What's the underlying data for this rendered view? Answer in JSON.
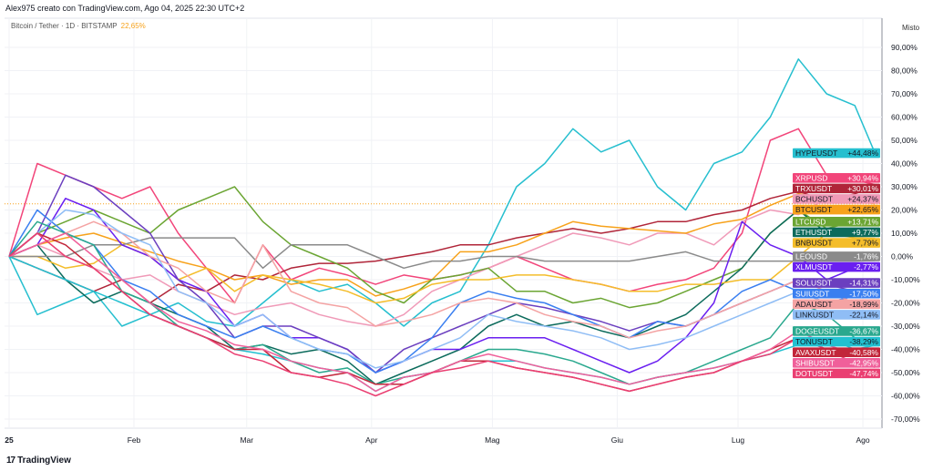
{
  "header": {
    "credit": "Alex975 creato con TradingView.com, Ago 04, 2025 22:30 UTC+2",
    "symbol": "Bitcoin / Tether · 1D · BITSTAMP",
    "change": "22,65%",
    "scale_mode": "Misto"
  },
  "footer": {
    "logo_mark": "17",
    "brand": "TradingView"
  },
  "chart_data": {
    "type": "line",
    "title": "",
    "ylabel": "",
    "xlabel": "",
    "ylim": [
      -75,
      97
    ],
    "grid": true,
    "y_ticks": [
      90,
      80,
      70,
      60,
      50,
      40,
      30,
      20,
      10,
      0,
      -10,
      -20,
      -30,
      -40,
      -50,
      -60,
      -70
    ],
    "y_tick_labels": [
      "90,00%",
      "80,00%",
      "70,00%",
      "60,00%",
      "50,00%",
      "40,00%",
      "30,00%",
      "20,00%",
      "10,00%",
      "0,00%",
      "-10,00%",
      "-20,00%",
      "-30,00%",
      "-40,00%",
      "-50,00%",
      "-60,00%",
      "-70,00%"
    ],
    "x_ticks": [
      {
        "date": "2025-01-01",
        "label": "25"
      },
      {
        "date": "2025-02-01",
        "label": "Feb"
      },
      {
        "date": "2025-03-01",
        "label": "Mar"
      },
      {
        "date": "2025-04-01",
        "label": "Apr"
      },
      {
        "date": "2025-05-01",
        "label": "Mag"
      },
      {
        "date": "2025-06-01",
        "label": "Giu"
      },
      {
        "date": "2025-07-01",
        "label": "Lug"
      },
      {
        "date": "2025-08-01",
        "label": "Ago"
      }
    ],
    "x": [
      "2025-01-01",
      "2025-01-08",
      "2025-01-15",
      "2025-01-22",
      "2025-01-29",
      "2025-02-05",
      "2025-02-12",
      "2025-02-19",
      "2025-02-26",
      "2025-03-05",
      "2025-03-12",
      "2025-03-19",
      "2025-03-26",
      "2025-04-02",
      "2025-04-09",
      "2025-04-16",
      "2025-04-23",
      "2025-04-30",
      "2025-05-07",
      "2025-05-14",
      "2025-05-21",
      "2025-05-28",
      "2025-06-04",
      "2025-06-11",
      "2025-06-18",
      "2025-06-25",
      "2025-07-02",
      "2025-07-09",
      "2025-07-16",
      "2025-07-23",
      "2025-07-30",
      "2025-08-04"
    ],
    "reference_line": {
      "value": 22.65,
      "color": "#f7a21b"
    },
    "series": [
      {
        "name": "HYPEUSDT",
        "last": "+44,48%",
        "color": "#26bfcf",
        "text": "#131722",
        "values": [
          0,
          -25,
          -20,
          -15,
          -30,
          -25,
          -20,
          -28,
          -30,
          -20,
          -10,
          -15,
          -12,
          -20,
          -30,
          -20,
          -15,
          5,
          30,
          40,
          55,
          45,
          50,
          30,
          20,
          40,
          45,
          60,
          85,
          70,
          65,
          44.48
        ]
      },
      {
        "name": "XRPUSD",
        "last": "+30,94%",
        "color": "#f2457a",
        "text": "#ffffff",
        "values": [
          0,
          40,
          35,
          30,
          25,
          30,
          10,
          -5,
          -20,
          5,
          -10,
          -5,
          -8,
          -12,
          -8,
          -10,
          -8,
          -5,
          0,
          -5,
          -10,
          -12,
          -15,
          -12,
          -10,
          -5,
          10,
          50,
          55,
          35,
          33,
          30.94
        ]
      },
      {
        "name": "TRXUSDT",
        "last": "+30,01%",
        "color": "#b02539",
        "text": "#ffffff",
        "values": [
          0,
          -5,
          -10,
          -15,
          -10,
          -20,
          -12,
          -15,
          -8,
          -10,
          -5,
          -3,
          -3,
          -2,
          0,
          2,
          5,
          5,
          8,
          10,
          12,
          10,
          12,
          15,
          15,
          18,
          20,
          25,
          28,
          24,
          27,
          30.01
        ]
      },
      {
        "name": "BCHUSDT",
        "last": "+24,37%",
        "color": "#f09ab8",
        "text": "#131722",
        "values": [
          0,
          5,
          0,
          -5,
          -10,
          -8,
          -15,
          -20,
          -25,
          -22,
          -20,
          -25,
          -28,
          -30,
          -25,
          -15,
          -10,
          -5,
          0,
          5,
          10,
          8,
          5,
          10,
          10,
          5,
          15,
          20,
          18,
          25,
          24,
          24.37
        ]
      },
      {
        "name": "BTCUSDT",
        "last": "+22,65%",
        "color": "#f7a21b",
        "text": "#131722",
        "values": [
          0,
          5,
          8,
          10,
          6,
          2,
          -2,
          -5,
          -10,
          -8,
          -12,
          -10,
          -10,
          -17,
          -14,
          -10,
          2,
          2,
          5,
          10,
          15,
          13,
          12,
          11,
          10,
          14,
          16,
          22,
          27,
          25,
          24,
          22.65
        ]
      },
      {
        "name": "LTCUSD",
        "last": "+13,71%",
        "color": "#6ba533",
        "text": "#ffffff",
        "values": [
          0,
          10,
          15,
          20,
          15,
          10,
          20,
          25,
          30,
          15,
          5,
          0,
          -5,
          -15,
          -20,
          -10,
          -8,
          -5,
          -15,
          -15,
          -20,
          -18,
          -22,
          -20,
          -15,
          -10,
          -5,
          10,
          20,
          12,
          15,
          13.71
        ]
      },
      {
        "name": "ETHUSDT",
        "last": "+9,77%",
        "color": "#0c6b5c",
        "text": "#ffffff",
        "values": [
          0,
          5,
          -10,
          -20,
          -15,
          -20,
          -25,
          -30,
          -40,
          -38,
          -42,
          -40,
          -45,
          -55,
          -50,
          -45,
          -40,
          -30,
          -25,
          -30,
          -28,
          -32,
          -35,
          -30,
          -25,
          -15,
          -5,
          10,
          20,
          10,
          12,
          9.77
        ]
      },
      {
        "name": "BNBUSDT",
        "last": "+7,79%",
        "color": "#f4bd2a",
        "text": "#131722",
        "values": [
          0,
          0,
          -5,
          -3,
          5,
          0,
          -10,
          -5,
          -15,
          -8,
          -10,
          -12,
          -15,
          -20,
          -18,
          -12,
          -10,
          -10,
          -8,
          -8,
          -10,
          -12,
          -15,
          -15,
          -12,
          -12,
          -10,
          -10,
          0,
          10,
          8,
          7.79
        ]
      },
      {
        "name": "LEOUSD",
        "last": "-1,76%",
        "color": "#8a8a8a",
        "text": "#ffffff",
        "values": [
          0,
          0,
          0,
          5,
          5,
          8,
          8,
          8,
          8,
          -5,
          5,
          5,
          5,
          0,
          -5,
          -2,
          -2,
          0,
          0,
          -2,
          -2,
          -2,
          -2,
          0,
          2,
          -2,
          -2,
          -2,
          -2,
          -2,
          -2,
          -1.76
        ]
      },
      {
        "name": "XLMUSDT",
        "last": "-2,77%",
        "color": "#6a1ff0",
        "text": "#ffffff",
        "values": [
          0,
          5,
          25,
          20,
          5,
          0,
          -10,
          -15,
          -30,
          -25,
          -35,
          -35,
          -40,
          -50,
          -45,
          -40,
          -40,
          -35,
          -35,
          -35,
          -40,
          -45,
          -50,
          -45,
          -35,
          -20,
          15,
          5,
          0,
          -10,
          -5,
          -2.77
        ]
      },
      {
        "name": "SOLUSDT",
        "last": "-14,31%",
        "color": "#6b3fbf",
        "text": "#ffffff",
        "values": [
          0,
          10,
          35,
          30,
          20,
          10,
          -10,
          -20,
          -35,
          -30,
          -30,
          -35,
          -40,
          -50,
          -40,
          -35,
          -30,
          -25,
          -20,
          -22,
          -25,
          -28,
          -32,
          -28,
          -30,
          -25,
          -20,
          -15,
          -10,
          -12,
          -15,
          -14.31
        ]
      },
      {
        "name": "SUIUSDT",
        "last": "-17,50%",
        "color": "#3a7ff0",
        "text": "#ffffff",
        "values": [
          0,
          20,
          10,
          5,
          -10,
          -15,
          -25,
          -30,
          -35,
          -30,
          -35,
          -40,
          -42,
          -50,
          -45,
          -35,
          -20,
          -15,
          -18,
          -20,
          -25,
          -30,
          -35,
          -28,
          -30,
          -25,
          -15,
          -10,
          -15,
          -20,
          -17,
          -17.5
        ]
      },
      {
        "name": "ADAUSDT",
        "last": "-18,99%",
        "color": "#f4a3a3",
        "text": "#131722",
        "values": [
          0,
          5,
          10,
          15,
          10,
          0,
          -5,
          -15,
          -20,
          5,
          -15,
          -20,
          -22,
          -30,
          -28,
          -25,
          -20,
          -18,
          -20,
          -25,
          -28,
          -30,
          -35,
          -32,
          -30,
          -25,
          -20,
          -15,
          -10,
          -15,
          -20,
          -18.99
        ]
      },
      {
        "name": "LINKUSDT",
        "last": "-22,14%",
        "color": "#8fbdf5",
        "text": "#131722",
        "values": [
          0,
          10,
          20,
          18,
          10,
          5,
          -15,
          -20,
          -30,
          -25,
          -35,
          -40,
          -42,
          -48,
          -45,
          -40,
          -35,
          -25,
          -28,
          -30,
          -32,
          -35,
          -40,
          -38,
          -35,
          -30,
          -25,
          -20,
          -15,
          -20,
          -22,
          -22.14
        ]
      },
      {
        "name": "DOGEUSDT",
        "last": "-36,67%",
        "color": "#2aa88e",
        "text": "#ffffff",
        "values": [
          0,
          15,
          10,
          5,
          -15,
          -20,
          -30,
          -35,
          -40,
          -38,
          -45,
          -50,
          -48,
          -55,
          -52,
          -50,
          -45,
          -40,
          -40,
          -42,
          -45,
          -50,
          -55,
          -52,
          -50,
          -45,
          -40,
          -35,
          -20,
          -25,
          -35,
          -36.67
        ]
      },
      {
        "name": "TONUSDT",
        "last": "-38,29%",
        "color": "#22c0d0",
        "text": "#131722",
        "values": [
          0,
          -5,
          -10,
          -15,
          -20,
          -25,
          -30,
          -35,
          -40,
          -42,
          -45,
          -48,
          -50,
          -58,
          -52,
          -50,
          -45,
          -45,
          -45,
          -48,
          -50,
          -52,
          -55,
          -52,
          -50,
          -48,
          -45,
          -42,
          -38,
          -35,
          -40,
          -38.29
        ]
      },
      {
        "name": "AVAXUSDT",
        "last": "-40,58%",
        "color": "#c2263a",
        "text": "#ffffff",
        "values": [
          0,
          10,
          5,
          -5,
          -15,
          -25,
          -30,
          -35,
          -40,
          -40,
          -50,
          -52,
          -50,
          -55,
          -55,
          -50,
          -45,
          -45,
          -48,
          -50,
          -52,
          -55,
          -58,
          -55,
          -52,
          -50,
          -45,
          -40,
          -35,
          -40,
          -42,
          -40.58
        ]
      },
      {
        "name": "SHIBUSDT",
        "last": "-42,95%",
        "color": "#f0609a",
        "text": "#ffffff",
        "values": [
          0,
          5,
          10,
          0,
          -10,
          -20,
          -28,
          -32,
          -38,
          -40,
          -45,
          -48,
          -50,
          -58,
          -52,
          -50,
          -45,
          -42,
          -45,
          -48,
          -50,
          -52,
          -55,
          -52,
          -50,
          -48,
          -45,
          -40,
          -32,
          -38,
          -42,
          -42.95
        ]
      },
      {
        "name": "DOTUSDT",
        "last": "-47,74%",
        "color": "#ea3f72",
        "text": "#ffffff",
        "values": [
          0,
          10,
          0,
          -5,
          -15,
          -25,
          -30,
          -35,
          -42,
          -45,
          -50,
          -52,
          -55,
          -60,
          -55,
          -50,
          -48,
          -45,
          -48,
          -50,
          -52,
          -55,
          -58,
          -55,
          -52,
          -50,
          -45,
          -42,
          -35,
          -40,
          -46,
          -47.74
        ]
      }
    ]
  }
}
